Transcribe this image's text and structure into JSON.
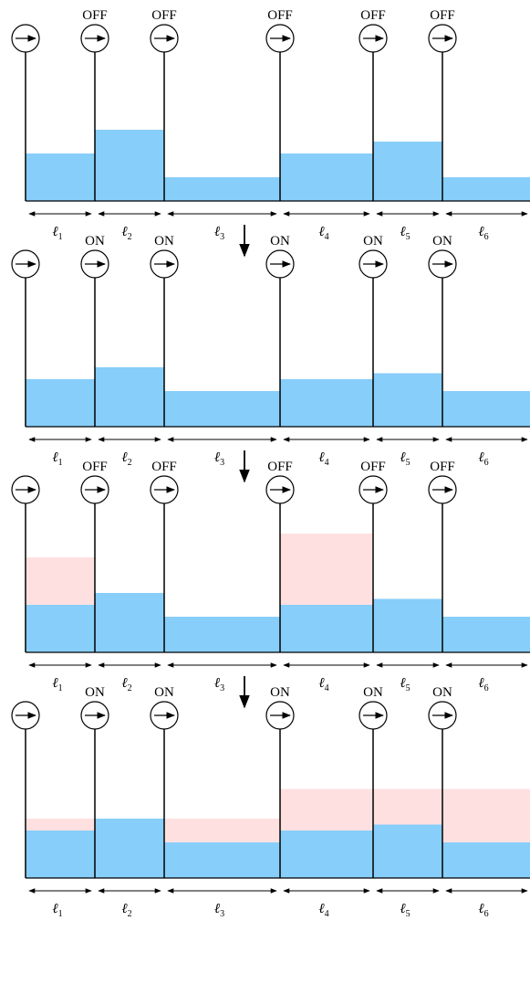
{
  "panels": [
    {
      "valve_state": "OFF",
      "blue_levels": [
        0.4,
        0.6,
        0.2,
        0.4,
        0.5,
        0.2
      ],
      "pink_levels": [
        null,
        null,
        null,
        null,
        null,
        null
      ]
    },
    {
      "valve_state": "ON",
      "blue_levels": [
        0.4,
        0.5,
        0.3,
        0.4,
        0.45,
        0.3
      ],
      "pink_levels": [
        null,
        null,
        null,
        null,
        null,
        null
      ]
    },
    {
      "valve_state": "OFF",
      "blue_levels": [
        0.4,
        0.5,
        0.3,
        0.4,
        0.45,
        0.3
      ],
      "pink_levels": [
        0.8,
        null,
        null,
        1.0,
        null,
        null
      ]
    },
    {
      "valve_state": "ON",
      "blue_levels": [
        0.4,
        0.5,
        0.3,
        0.4,
        0.45,
        0.3
      ],
      "pink_levels": [
        0.5,
        null,
        0.5,
        0.75,
        0.75,
        0.75
      ]
    }
  ],
  "segment_symbol": "ℓ",
  "segment_indices": [
    "1",
    "2",
    "3",
    "4",
    "5",
    "6"
  ],
  "colors": {
    "water": "#87cefa",
    "excess": "#ffe0e0",
    "line": "#000000"
  },
  "icons": {
    "valve": "circle-right-arrow-icon",
    "step": "down-arrow-icon"
  }
}
